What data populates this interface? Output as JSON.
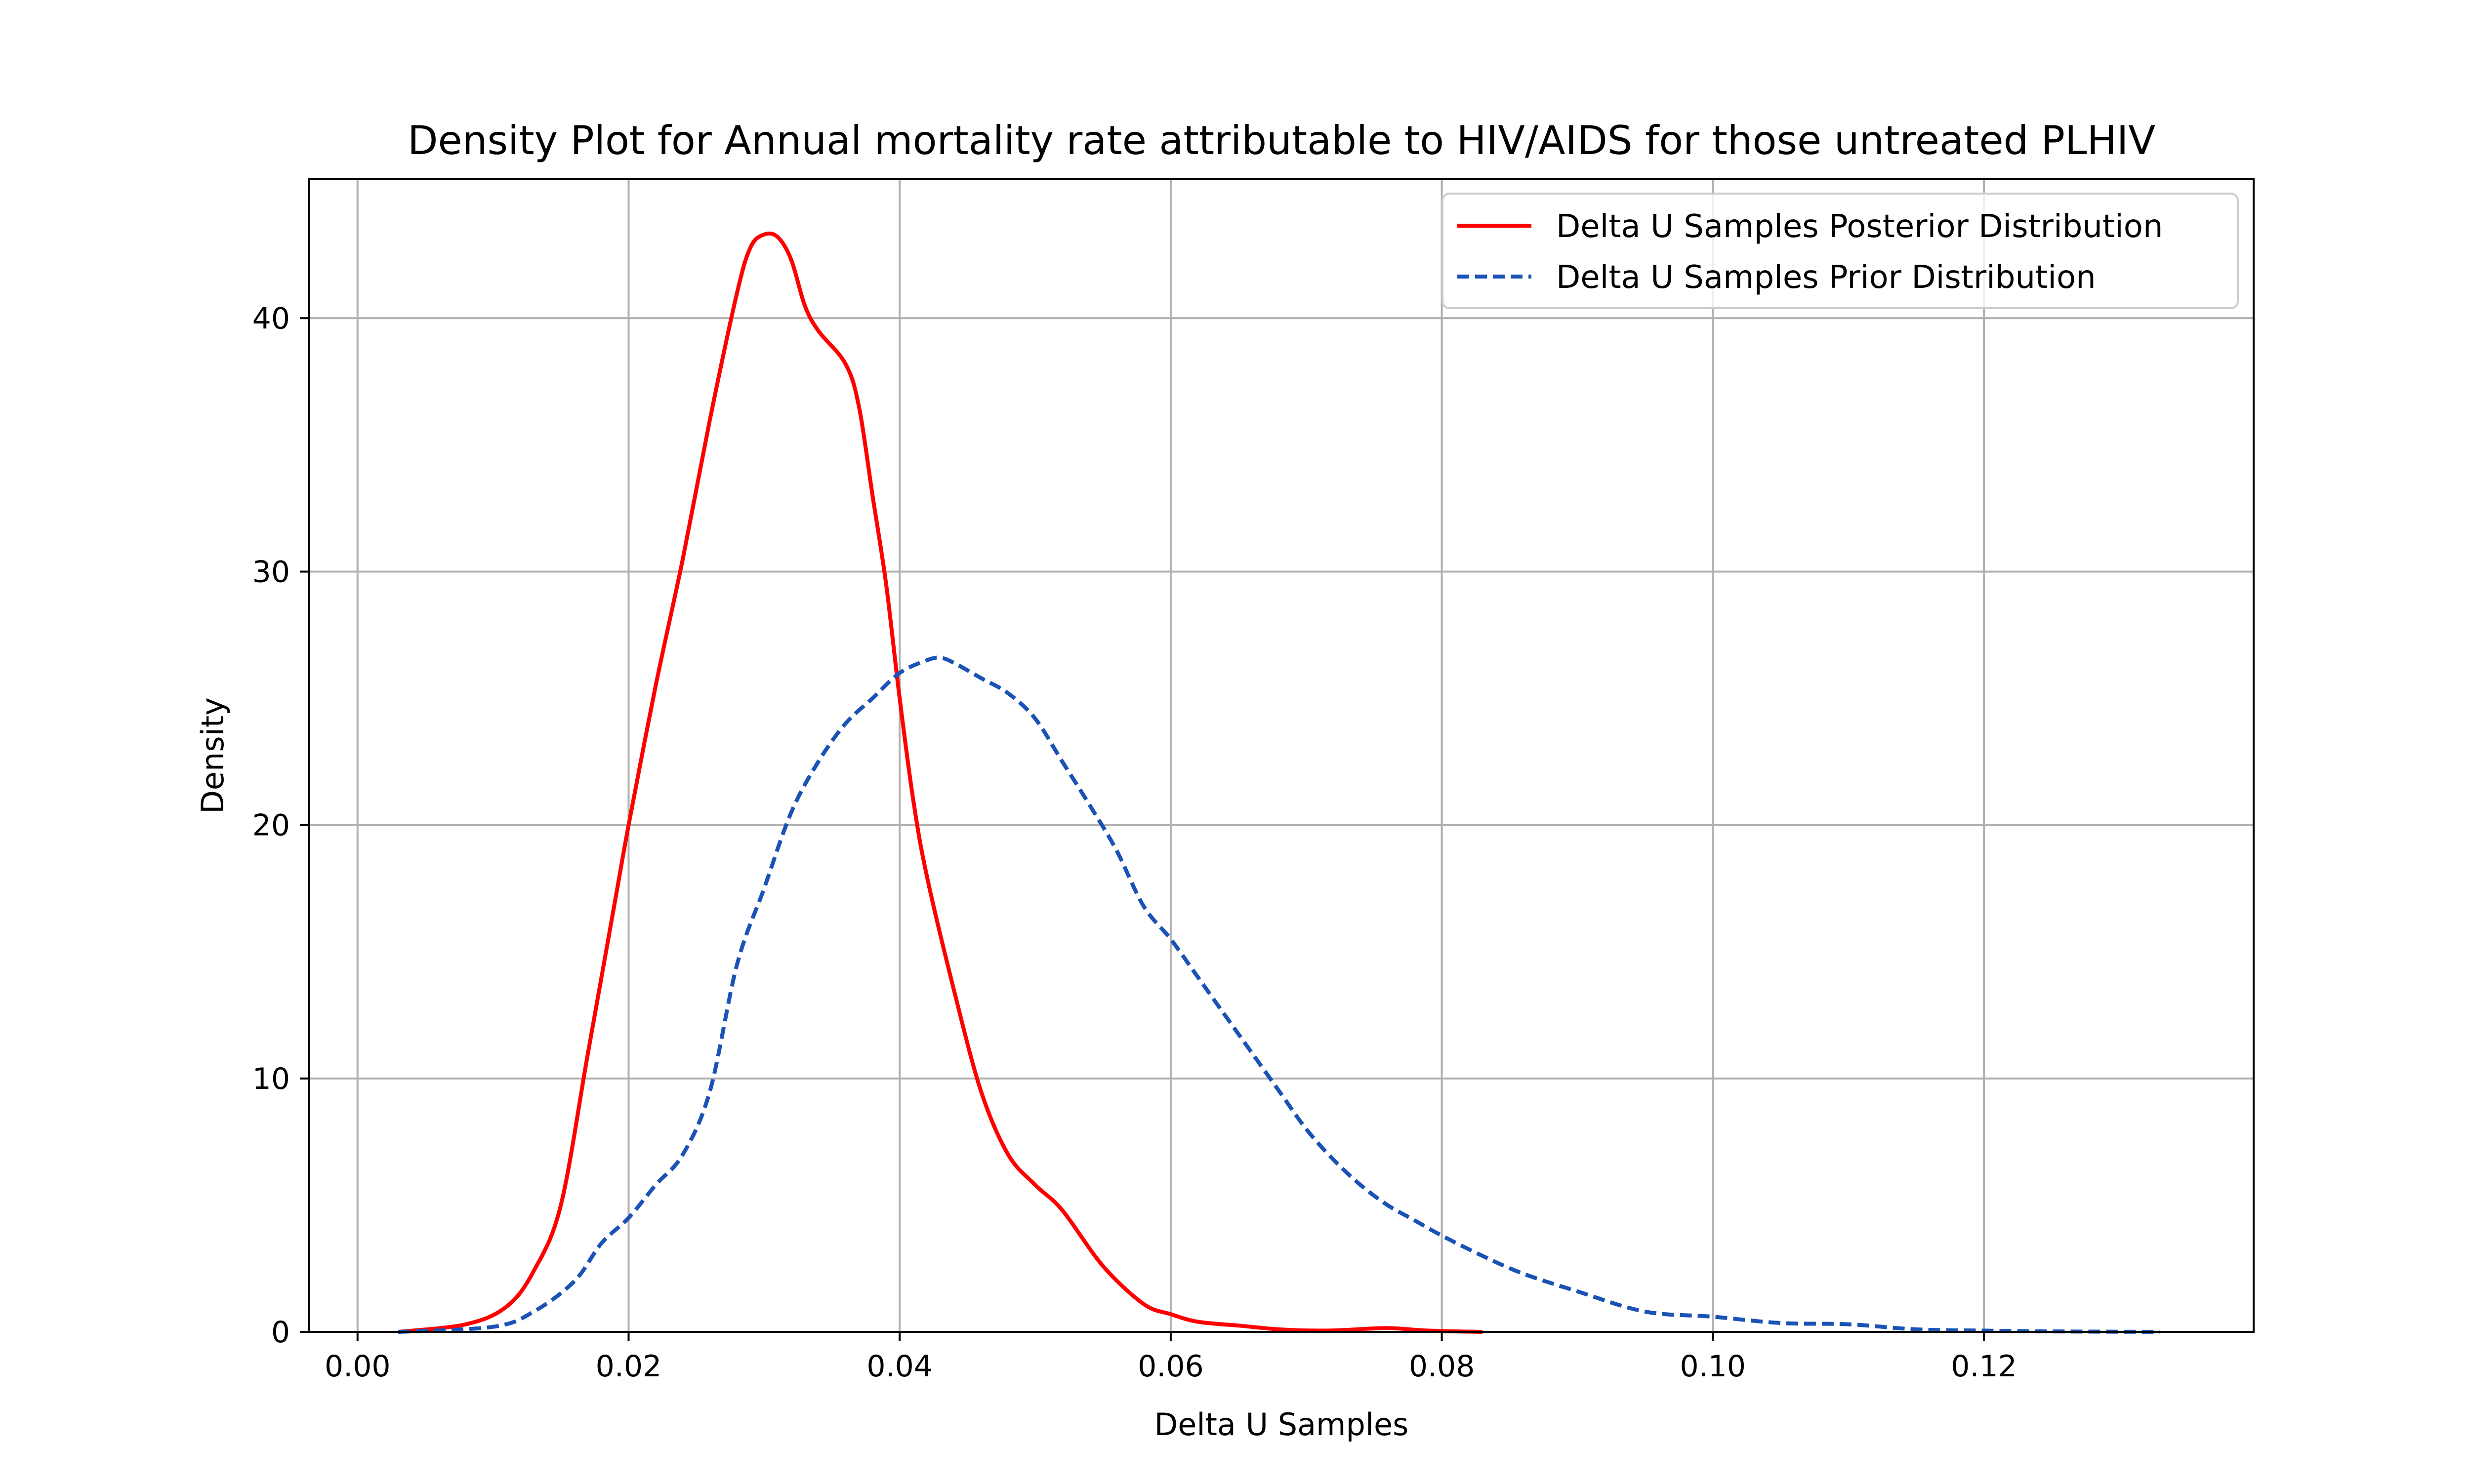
{
  "chart_data": {
    "type": "line",
    "title": "Density Plot for Annual mortality rate attributable to HIV/AIDS for those untreated PLHIV",
    "xlabel": "Delta U Samples",
    "ylabel": "Density",
    "xlim": [
      -0.0036,
      0.1399
    ],
    "ylim": [
      0,
      45.5
    ],
    "xticks": [
      0.0,
      0.02,
      0.04,
      0.06,
      0.08,
      0.1,
      0.12
    ],
    "xtick_labels": [
      "0.00",
      "0.02",
      "0.04",
      "0.06",
      "0.08",
      "0.10",
      "0.12"
    ],
    "yticks": [
      0,
      10,
      20,
      30,
      40
    ],
    "ytick_labels": [
      "0",
      "10",
      "20",
      "30",
      "40"
    ],
    "grid": true,
    "legend_position": "top-right",
    "series": [
      {
        "name": "Delta U Samples Posterior Distribution",
        "color": "#ff0000",
        "style": "solid",
        "x": [
          0.003,
          0.008,
          0.011,
          0.013,
          0.015,
          0.017,
          0.019,
          0.02,
          0.022,
          0.024,
          0.026,
          0.028,
          0.029,
          0.03,
          0.031,
          0.032,
          0.033,
          0.034,
          0.036,
          0.037,
          0.038,
          0.039,
          0.04,
          0.041,
          0.042,
          0.044,
          0.046,
          0.048,
          0.05,
          0.052,
          0.055,
          0.058,
          0.06,
          0.062,
          0.065,
          0.068,
          0.071,
          0.073,
          0.076,
          0.079,
          0.083
        ],
        "y": [
          0,
          0.3,
          1.0,
          2.4,
          5.0,
          11.0,
          17.0,
          20.0,
          25.5,
          30.5,
          36.0,
          41.0,
          42.8,
          43.3,
          43.2,
          42.3,
          40.5,
          39.5,
          38.2,
          36.5,
          33.0,
          29.5,
          25.0,
          21.0,
          18.0,
          13.5,
          9.5,
          7.0,
          5.8,
          4.8,
          2.6,
          1.1,
          0.7,
          0.4,
          0.25,
          0.1,
          0.05,
          0.08,
          0.15,
          0.05,
          0
        ]
      },
      {
        "name": "Delta U Samples Prior Distribution",
        "color": "#1a52b5",
        "style": "dashed",
        "x": [
          0.003,
          0.01,
          0.013,
          0.016,
          0.018,
          0.02,
          0.022,
          0.024,
          0.026,
          0.028,
          0.03,
          0.032,
          0.034,
          0.036,
          0.038,
          0.04,
          0.042,
          0.043,
          0.044,
          0.046,
          0.048,
          0.05,
          0.052,
          0.054,
          0.056,
          0.058,
          0.06,
          0.062,
          0.064,
          0.066,
          0.068,
          0.07,
          0.072,
          0.074,
          0.076,
          0.078,
          0.08,
          0.083,
          0.086,
          0.09,
          0.095,
          0.1,
          0.105,
          0.11,
          0.115,
          0.12,
          0.125,
          0.133
        ],
        "y": [
          0,
          0.2,
          0.8,
          2.0,
          3.5,
          4.5,
          5.8,
          7.0,
          9.5,
          14.5,
          17.5,
          20.5,
          22.5,
          24.0,
          25.0,
          26.0,
          26.5,
          26.6,
          26.4,
          25.8,
          25.2,
          24.2,
          22.5,
          20.8,
          19.0,
          16.8,
          15.5,
          14.0,
          12.5,
          11.0,
          9.5,
          8.0,
          6.8,
          5.8,
          5.0,
          4.4,
          3.8,
          3.0,
          2.3,
          1.6,
          0.8,
          0.6,
          0.35,
          0.3,
          0.1,
          0.05,
          0.02,
          0
        ]
      }
    ]
  }
}
